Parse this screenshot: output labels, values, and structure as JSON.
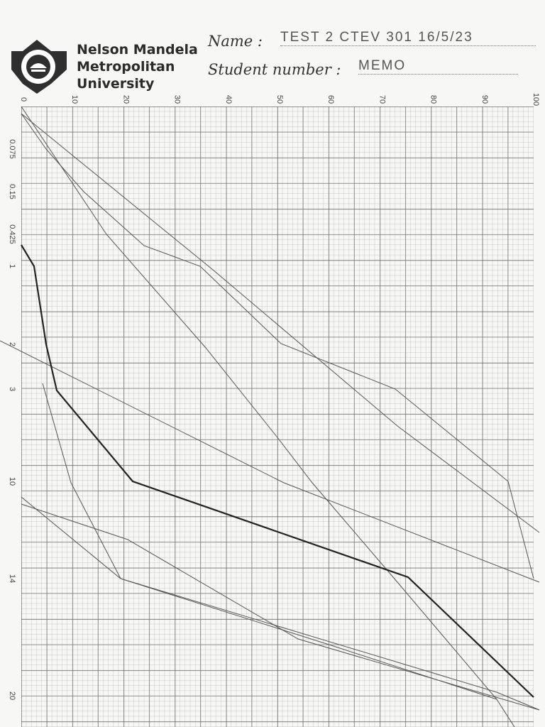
{
  "header": {
    "university": [
      "Nelson Mandela",
      "Metropolitan",
      "University"
    ],
    "name_label": "Name :",
    "name_value": "TEST 2  CTEV 301  16/5/23",
    "student_number_label": "Student number :",
    "student_number_value": "MEMO"
  },
  "graph": {
    "x_labels": [
      "0",
      "10",
      "20",
      "30",
      "40",
      "50",
      "60",
      "70",
      "80",
      "90",
      "100"
    ],
    "y_labels": [
      "0.075",
      "0.15",
      "0.425",
      "1",
      "2",
      "3",
      "10",
      "14",
      "20"
    ]
  }
}
